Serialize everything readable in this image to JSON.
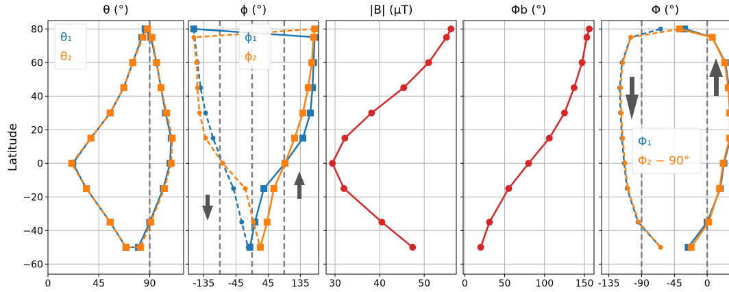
{
  "chart_data": [
    {
      "type": "line",
      "title": "θ (°)",
      "ylabel": "Latitude",
      "xlim": [
        0,
        120
      ],
      "xticks": [
        0,
        45,
        90
      ],
      "ylim": [
        -66,
        85
      ],
      "yticks": [
        {
          "value": -60,
          "label": "−60"
        },
        {
          "value": -40,
          "label": "−40"
        },
        {
          "value": -20,
          "label": "−20"
        },
        0,
        20,
        40,
        60,
        80
      ],
      "vlines": [
        90
      ],
      "grid": true,
      "legend": "upper left",
      "series": [
        {
          "name": "θ₁",
          "color": "#1f77b4",
          "linestyle": "solid",
          "marker": "square",
          "x": [
            86,
            83,
            75,
            67,
            55,
            38,
            22,
            34,
            55,
            69,
            80,
            90,
            102,
            108,
            109,
            104,
            100,
            96,
            91,
            86
          ],
          "y": [
            80,
            75,
            60,
            45,
            30,
            15,
            0,
            -15,
            -35,
            -50,
            -50,
            -35,
            -15,
            0,
            15,
            30,
            45,
            60,
            75,
            80
          ]
        },
        {
          "name": "θ₂",
          "color": "#ff7f0e",
          "linestyle": "dashed",
          "marker": "square",
          "x": [
            88,
            84,
            75,
            67,
            55,
            38,
            21,
            34,
            55,
            69,
            82,
            91,
            103,
            109,
            110,
            105,
            100,
            96,
            92,
            88
          ],
          "y": [
            80,
            75,
            60,
            45,
            30,
            15,
            0,
            -15,
            -35,
            -50,
            -50,
            -35,
            -15,
            0,
            15,
            30,
            45,
            60,
            75,
            80
          ]
        }
      ]
    },
    {
      "type": "line",
      "title": "ϕ (°)",
      "xlim": [
        -178,
        186
      ],
      "xticks": [
        {
          "value": -135,
          "label": "-135"
        },
        {
          "value": -45,
          "label": "-45"
        },
        45,
        135
      ],
      "ylim": [
        -66,
        85
      ],
      "yticks": [
        -60,
        -40,
        -20,
        0,
        20,
        40,
        60,
        80
      ],
      "vlines": [
        -90,
        0,
        90
      ],
      "grid": true,
      "legend": "upper center",
      "series": [
        {
          "name": "ϕ₁",
          "color": "#1f77b4",
          "linestyle": "solid",
          "marker": "square",
          "x": [
            -163,
            184,
            175,
            172,
            169,
            163,
            142,
            92,
            33,
            8,
            -6
          ],
          "y": [
            80,
            75,
            75,
            60,
            45,
            30,
            15,
            0,
            -15,
            -35,
            -50
          ]
        },
        {
          "name": "ϕ₂",
          "color": "#ff7f0e",
          "linestyle": "solid",
          "marker": "square",
          "x": [
            175,
            172,
            167,
            157,
            142,
            119,
            92,
            61,
            42,
            23
          ],
          "y": [
            80,
            75,
            60,
            45,
            30,
            15,
            0,
            -15,
            -35,
            -50
          ]
        },
        {
          "color": "#1f77b4",
          "linestyle": "dashed",
          "marker": "circle",
          "x": [
            -163,
            -153,
            -144,
            -130,
            -109,
            -82,
            -52,
            -29,
            -11
          ],
          "y": [
            80,
            60,
            45,
            30,
            15,
            0,
            -15,
            -35,
            -50
          ]
        },
        {
          "color": "#ff7f0e",
          "linestyle": "dashed",
          "marker": "circle",
          "x": [
            175,
            -163,
            -155,
            -153,
            -147,
            -130,
            -82,
            -19,
            4,
            23
          ],
          "y": [
            80,
            75,
            60,
            45,
            30,
            15,
            0,
            -15,
            -35,
            -50
          ]
        }
      ]
    },
    {
      "type": "line",
      "title": "|B| (μT)",
      "xlim": [
        28,
        57.2
      ],
      "xticks": [
        30,
        40,
        50
      ],
      "ylim": [
        -66,
        85
      ],
      "yticks": [
        -60,
        -40,
        -20,
        0,
        20,
        40,
        60,
        80
      ],
      "grid": true,
      "series": [
        {
          "color": "#d62728",
          "linestyle": "solid",
          "marker": "circle",
          "x": [
            56,
            55,
            51,
            45.4,
            38.2,
            32.2,
            29.4,
            32,
            40.5,
            47.4
          ],
          "y": [
            80,
            75,
            60,
            45,
            30,
            15,
            0,
            -15,
            -35,
            -50
          ]
        }
      ]
    },
    {
      "type": "line",
      "title": "Φb (°)",
      "xlim": [
        -2,
        162
      ],
      "xticks": [
        0,
        50,
        100,
        150
      ],
      "ylim": [
        -66,
        85
      ],
      "yticks": [
        -60,
        -40,
        -20,
        0,
        20,
        40,
        60,
        80
      ],
      "grid": true,
      "series": [
        {
          "color": "#d62728",
          "linestyle": "solid",
          "marker": "circle",
          "x": [
            156,
            153,
            147,
            137,
            125,
            106,
            80,
            55,
            31,
            20
          ],
          "y": [
            80,
            75,
            60,
            45,
            30,
            15,
            0,
            -15,
            -35,
            -50
          ]
        }
      ]
    },
    {
      "type": "line",
      "title": "Φ (°)",
      "xlim": [
        -145,
        45
      ],
      "xticks": [
        {
          "value": -135,
          "label": "-135"
        },
        {
          "value": -90,
          "label": "-90"
        },
        {
          "value": -45,
          "label": "-45"
        },
        0
      ],
      "ylim": [
        -66,
        85
      ],
      "yticks": [
        -60,
        -40,
        -20,
        0,
        20,
        40,
        60,
        80
      ],
      "vlines": [
        -90,
        0
      ],
      "grid": true,
      "legend": "center left",
      "series": [
        {
          "name": "Φ₁",
          "color": "#1f77b4",
          "linestyle": "solid",
          "marker": "square",
          "x": [
            -31,
            7,
            25,
            30,
            32,
            32,
            23,
            18,
            0,
            -26
          ],
          "y": [
            80,
            75,
            60,
            45,
            30,
            15,
            0,
            -15,
            -35,
            -50
          ]
        },
        {
          "name": "Φ₂ − 90°",
          "color": "#ff7f0e",
          "linestyle": "solid",
          "marker": "square",
          "x": [
            -38,
            7,
            24,
            29,
            31,
            31,
            22,
            17,
            2,
            -22
          ],
          "y": [
            80,
            75,
            60,
            45,
            30,
            15,
            0,
            -15,
            -35,
            -50
          ]
        },
        {
          "color": "#1f77b4",
          "linestyle": "dashed",
          "marker": "circle",
          "x": [
            -64,
            -105,
            -117,
            -120,
            -119,
            -117,
            -114,
            -110,
            -95,
            -64
          ],
          "y": [
            80,
            75,
            60,
            45,
            30,
            15,
            0,
            -15,
            -35,
            -50
          ]
        },
        {
          "color": "#ff7f0e",
          "linestyle": "dashed",
          "marker": "circle",
          "x": [
            -38,
            -105,
            -116,
            -119,
            -118,
            -116,
            -113,
            -109,
            -94,
            -64
          ],
          "y": [
            80,
            75,
            60,
            45,
            30,
            15,
            0,
            -15,
            -35,
            -50
          ]
        }
      ]
    }
  ]
}
